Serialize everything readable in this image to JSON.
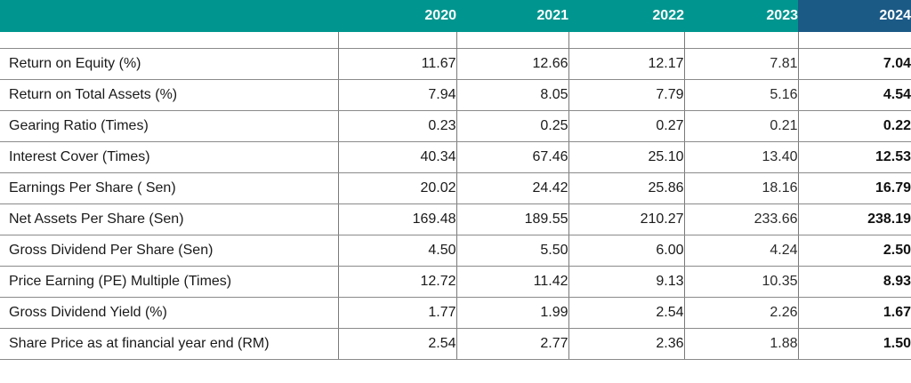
{
  "table": {
    "years": [
      "2020",
      "2021",
      "2022",
      "2023",
      "2024"
    ],
    "rows": [
      {
        "label": "Return on Equity (%)",
        "values": [
          "11.67",
          "12.66",
          "12.17",
          "7.81",
          "7.04"
        ]
      },
      {
        "label": "Return on Total Assets (%)",
        "values": [
          "7.94",
          "8.05",
          "7.79",
          "5.16",
          "4.54"
        ]
      },
      {
        "label": "Gearing Ratio (Times)",
        "values": [
          "0.23",
          "0.25",
          "0.27",
          "0.21",
          "0.22"
        ]
      },
      {
        "label": "Interest Cover (Times)",
        "values": [
          "40.34",
          "67.46",
          "25.10",
          "13.40",
          "12.53"
        ]
      },
      {
        "label": "Earnings Per Share ( Sen)",
        "values": [
          "20.02",
          "24.42",
          "25.86",
          "18.16",
          "16.79"
        ]
      },
      {
        "label": "Net Assets Per Share (Sen)",
        "values": [
          "169.48",
          "189.55",
          "210.27",
          "233.66",
          "238.19"
        ]
      },
      {
        "label": "Gross Dividend Per Share (Sen)",
        "values": [
          "4.50",
          "5.50",
          "6.00",
          "4.24",
          "2.50"
        ]
      },
      {
        "label": "Price Earning (PE) Multiple (Times)",
        "values": [
          "12.72",
          "11.42",
          "9.13",
          "10.35",
          "8.93"
        ]
      },
      {
        "label": "Gross Dividend Yield (%)",
        "values": [
          "1.77",
          "1.99",
          "2.54",
          "2.26",
          "1.67"
        ]
      },
      {
        "label": "Share Price as at financial year end (RM)",
        "values": [
          "2.54",
          "2.77",
          "2.36",
          "1.88",
          "1.50"
        ]
      }
    ]
  },
  "colors": {
    "header_teal": "#00968f",
    "header_highlight": "#1c5a86",
    "rule": "#8a8a8a"
  }
}
